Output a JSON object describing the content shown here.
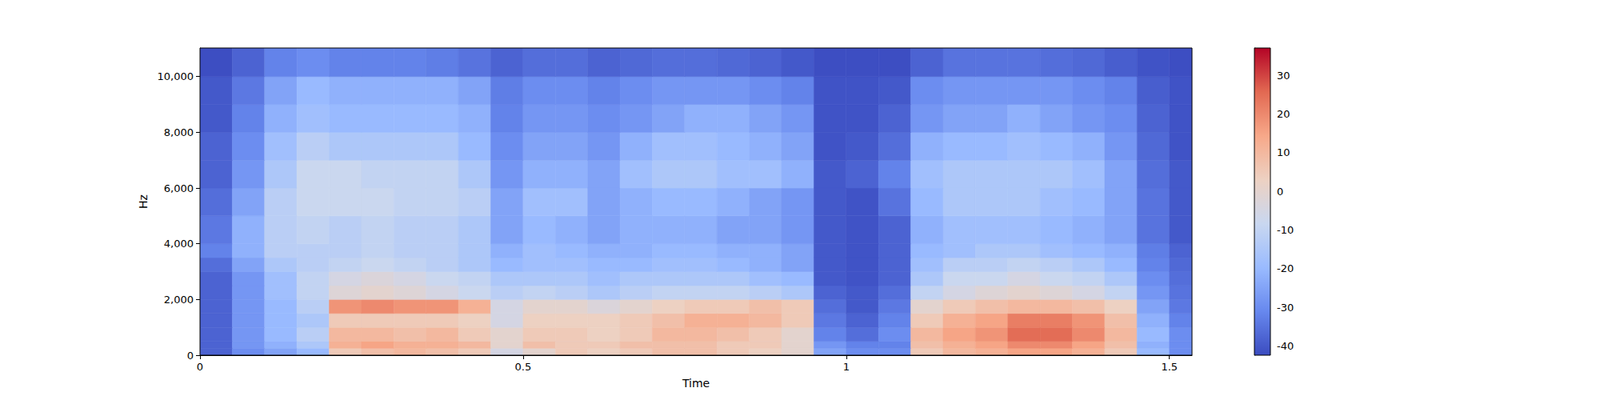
{
  "chart_data": {
    "type": "heatmap",
    "x_label": "Time",
    "y_label": "Hz",
    "xlim": [
      0,
      1.535
    ],
    "ylim": [
      0,
      11025
    ],
    "xticks": [
      0,
      0.5,
      1,
      1.5
    ],
    "yticks": [
      0,
      2000,
      4000,
      6000,
      8000,
      10000
    ],
    "x_edges": [
      0,
      0.05,
      0.1,
      0.15,
      0.2,
      0.25,
      0.3,
      0.35,
      0.4,
      0.45,
      0.5,
      0.55,
      0.6,
      0.65,
      0.7,
      0.75,
      0.8,
      0.85,
      0.9,
      0.95,
      1.0,
      1.05,
      1.1,
      1.15,
      1.2,
      1.25,
      1.3,
      1.35,
      1.4,
      1.45,
      1.5,
      1.535
    ],
    "y_edges": [
      0,
      250,
      500,
      1000,
      1500,
      2000,
      2500,
      3000,
      3500,
      4000,
      5000,
      6000,
      7000,
      8000,
      9000,
      10000,
      11025
    ],
    "values": [
      [
        -38,
        -30,
        -25,
        -20,
        5,
        8,
        10,
        8,
        5,
        -5,
        0,
        5,
        3,
        5,
        8,
        8,
        5,
        3,
        0,
        -25,
        -30,
        -30,
        5,
        10,
        12,
        15,
        15,
        12,
        5,
        -20,
        -30
      ],
      [
        -38,
        -28,
        -22,
        -15,
        12,
        15,
        12,
        12,
        10,
        0,
        8,
        5,
        5,
        8,
        8,
        8,
        5,
        5,
        0,
        -28,
        -32,
        -32,
        8,
        12,
        15,
        20,
        20,
        15,
        8,
        -22,
        -30
      ],
      [
        -38,
        -28,
        -20,
        -12,
        10,
        10,
        8,
        10,
        5,
        0,
        5,
        5,
        3,
        5,
        10,
        10,
        8,
        5,
        0,
        -32,
        -36,
        -30,
        10,
        15,
        18,
        25,
        25,
        20,
        10,
        -20,
        -30
      ],
      [
        -38,
        -28,
        -20,
        -15,
        5,
        5,
        5,
        5,
        3,
        -5,
        3,
        3,
        3,
        5,
        8,
        12,
        12,
        10,
        5,
        -34,
        -38,
        -32,
        5,
        12,
        15,
        22,
        22,
        18,
        8,
        -22,
        -32
      ],
      [
        -38,
        -28,
        -20,
        -12,
        18,
        20,
        18,
        18,
        12,
        -5,
        0,
        0,
        -3,
        0,
        3,
        5,
        5,
        8,
        5,
        -36,
        -40,
        -34,
        0,
        5,
        8,
        10,
        10,
        8,
        3,
        -25,
        -34
      ],
      [
        -38,
        -28,
        -18,
        -10,
        -2,
        0,
        -2,
        -5,
        -8,
        -12,
        -10,
        -12,
        -15,
        -12,
        -10,
        -10,
        -10,
        -12,
        -15,
        -38,
        -40,
        -36,
        -10,
        -5,
        -2,
        0,
        -2,
        -5,
        -10,
        -28,
        -35
      ],
      [
        -38,
        -28,
        -18,
        -10,
        -5,
        -3,
        -5,
        -8,
        -10,
        -15,
        -15,
        -15,
        -18,
        -15,
        -15,
        -15,
        -15,
        -18,
        -20,
        -40,
        -41,
        -38,
        -15,
        -8,
        -8,
        -5,
        -8,
        -10,
        -15,
        -30,
        -36
      ],
      [
        -36,
        -25,
        -15,
        -12,
        -10,
        -8,
        -10,
        -12,
        -15,
        -20,
        -18,
        -18,
        -20,
        -20,
        -18,
        -18,
        -20,
        -22,
        -25,
        -40,
        -41,
        -38,
        -18,
        -12,
        -12,
        -10,
        -12,
        -15,
        -20,
        -32,
        -37
      ],
      [
        -32,
        -22,
        -12,
        -12,
        -12,
        -10,
        -12,
        -12,
        -15,
        -22,
        -18,
        -20,
        -22,
        -22,
        -20,
        -20,
        -22,
        -22,
        -25,
        -40,
        -41,
        -38,
        -20,
        -18,
        -15,
        -15,
        -18,
        -20,
        -22,
        -33,
        -38
      ],
      [
        -34,
        -22,
        -12,
        -10,
        -12,
        -10,
        -12,
        -12,
        -15,
        -25,
        -20,
        -22,
        -25,
        -22,
        -22,
        -22,
        -25,
        -25,
        -28,
        -40,
        -41,
        -38,
        -22,
        -18,
        -18,
        -18,
        -20,
        -22,
        -25,
        -35,
        -40
      ],
      [
        -36,
        -25,
        -12,
        -8,
        -8,
        -8,
        -10,
        -10,
        -12,
        -25,
        -18,
        -18,
        -25,
        -22,
        -20,
        -20,
        -22,
        -25,
        -28,
        -40,
        -41,
        -35,
        -20,
        -15,
        -15,
        -15,
        -18,
        -20,
        -25,
        -35,
        -40
      ],
      [
        -38,
        -28,
        -15,
        -8,
        -8,
        -10,
        -10,
        -10,
        -15,
        -28,
        -22,
        -22,
        -25,
        -18,
        -15,
        -15,
        -18,
        -18,
        -22,
        -40,
        -38,
        -32,
        -18,
        -15,
        -15,
        -15,
        -15,
        -18,
        -25,
        -36,
        -40
      ],
      [
        -38,
        -30,
        -18,
        -12,
        -15,
        -15,
        -15,
        -15,
        -20,
        -30,
        -25,
        -25,
        -28,
        -22,
        -18,
        -18,
        -20,
        -22,
        -25,
        -41,
        -40,
        -36,
        -22,
        -20,
        -20,
        -18,
        -20,
        -22,
        -28,
        -37,
        -41
      ],
      [
        -40,
        -32,
        -22,
        -18,
        -20,
        -20,
        -20,
        -20,
        -22,
        -32,
        -28,
        -28,
        -30,
        -28,
        -25,
        -22,
        -22,
        -25,
        -28,
        -41,
        -41,
        -38,
        -28,
        -25,
        -25,
        -22,
        -25,
        -28,
        -30,
        -38,
        -41
      ],
      [
        -40,
        -34,
        -25,
        -20,
        -22,
        -22,
        -22,
        -22,
        -25,
        -33,
        -30,
        -30,
        -32,
        -30,
        -28,
        -28,
        -28,
        -30,
        -32,
        -41,
        -41,
        -40,
        -30,
        -28,
        -28,
        -28,
        -28,
        -30,
        -32,
        -39,
        -41
      ],
      [
        -42,
        -38,
        -32,
        -30,
        -32,
        -32,
        -32,
        -33,
        -35,
        -38,
        -36,
        -36,
        -38,
        -37,
        -36,
        -36,
        -37,
        -38,
        -40,
        -42,
        -42,
        -42,
        -38,
        -35,
        -35,
        -35,
        -36,
        -37,
        -39,
        -41,
        -42
      ]
    ],
    "colorbar": {
      "range": [
        -42.4,
        37.1
      ],
      "ticks": [
        -40,
        -30,
        -20,
        -10,
        0,
        10,
        20,
        30
      ]
    }
  }
}
